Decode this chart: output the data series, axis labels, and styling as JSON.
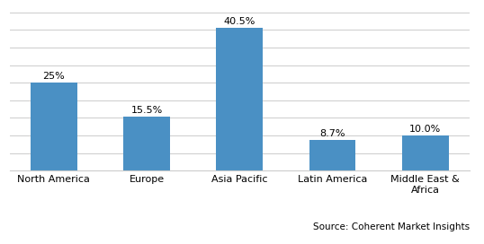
{
  "categories": [
    "North America",
    "Europe",
    "Asia Pacific",
    "Latin America",
    "Middle East &\nAfrica"
  ],
  "values": [
    25.0,
    15.5,
    40.5,
    8.7,
    10.0
  ],
  "labels": [
    "25%",
    "15.5%",
    "40.5%",
    "8.7%",
    "10.0%"
  ],
  "bar_color": "#4A90C4",
  "background_color": "#ffffff",
  "grid_color": "#cccccc",
  "ylim": [
    0,
    45
  ],
  "yticks": [
    0,
    5,
    10,
    15,
    20,
    25,
    30,
    35,
    40,
    45
  ],
  "source_text": "Source: Coherent Market Insights",
  "label_fontsize": 8,
  "tick_fontsize": 8,
  "source_fontsize": 7.5
}
